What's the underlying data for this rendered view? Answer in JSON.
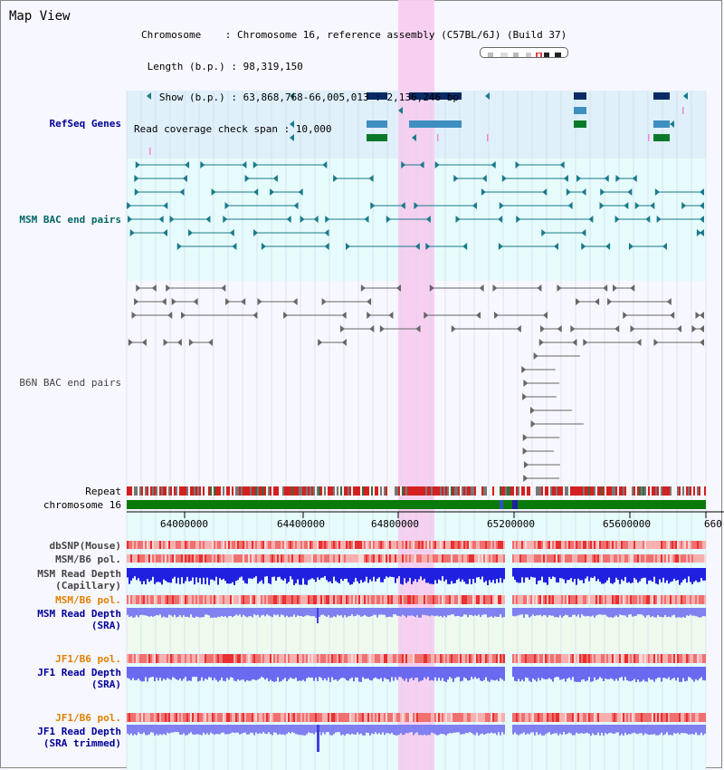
{
  "header": {
    "title": "Map View",
    "info_lines": [
      "Chromosome    : Chromosome 16, reference assembly (C57BL/6J) (Build 37)",
      " Length (b.p.) : 98,319,150",
      "   Show (b.p.) : 63,868,768-66,005,013 : 2,136,246 bp",
      "Read coverage check span : 10,000"
    ]
  },
  "tracks": {
    "refseq": "RefSeq Genes",
    "msm_bac": "MSM BAC end pairs",
    "b6n_bac": "B6N BAC end pairs",
    "repeat": "Repeat",
    "chromosome": "chromosome 16",
    "dbsnp": "dbSNP(Mouse)",
    "msm_b6_pol_1": "MSM/B6 pol.",
    "msm_read_depth_cap": "MSM Read Depth\n(Capillary)",
    "msm_b6_pol_2": "MSM/B6 pol.",
    "msm_read_depth_sra": "MSM Read Depth\n(SRA)",
    "jf1_b6_pol_1": "JF1/B6 pol.",
    "jf1_read_depth_sra": "JF1 Read Depth\n(SRA)",
    "jf1_b6_pol_2": "JF1/B6 pol.",
    "jf1_read_depth_trim": "JF1 Read Depth\n(SRA trimmed)"
  },
  "axis": {
    "ticks": [
      "64000000",
      "64400000",
      "64800000",
      "65200000",
      "65600000",
      "660"
    ]
  },
  "colors": {
    "highlight": "#f7cdf0",
    "refseq_bg": "#dff0fa",
    "msm_bac_bg": "#e6fbfb",
    "teal": "#1a7a8a",
    "gene_dark": "#0a2a66",
    "gene_light": "#3e8fbf",
    "gene_green": "#0a7a2a",
    "chrom_green": "#0a7a0a",
    "depth_blue": "#2020e0",
    "depth_light": "#8080f0",
    "pol_red": "#e84040"
  }
}
